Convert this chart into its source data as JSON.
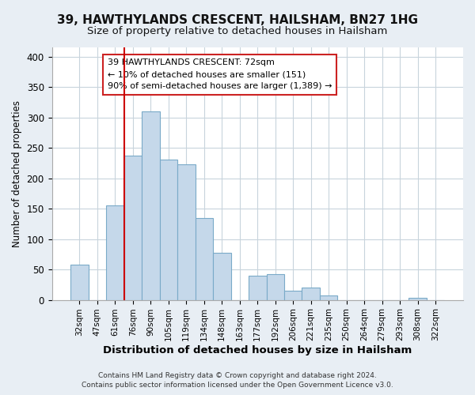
{
  "title": "39, HAWTHYLANDS CRESCENT, HAILSHAM, BN27 1HG",
  "subtitle": "Size of property relative to detached houses in Hailsham",
  "xlabel": "Distribution of detached houses by size in Hailsham",
  "ylabel": "Number of detached properties",
  "bar_color": "#c5d8ea",
  "bar_edge_color": "#7aaac8",
  "categories": [
    "32sqm",
    "47sqm",
    "61sqm",
    "76sqm",
    "90sqm",
    "105sqm",
    "119sqm",
    "134sqm",
    "148sqm",
    "163sqm",
    "177sqm",
    "192sqm",
    "206sqm",
    "221sqm",
    "235sqm",
    "250sqm",
    "264sqm",
    "279sqm",
    "293sqm",
    "308sqm",
    "322sqm"
  ],
  "values": [
    58,
    0,
    155,
    237,
    310,
    230,
    223,
    135,
    78,
    0,
    40,
    42,
    15,
    20,
    7,
    0,
    0,
    0,
    0,
    3,
    0
  ],
  "ylim": [
    0,
    415
  ],
  "yticks": [
    0,
    50,
    100,
    150,
    200,
    250,
    300,
    350,
    400
  ],
  "vline_index": 3,
  "vline_color": "#cc0000",
  "annotation_title": "39 HAWTHYLANDS CRESCENT: 72sqm",
  "annotation_line1": "← 10% of detached houses are smaller (151)",
  "annotation_line2": "90% of semi-detached houses are larger (1,389) →",
  "footer1": "Contains HM Land Registry data © Crown copyright and database right 2024.",
  "footer2": "Contains public sector information licensed under the Open Government Licence v3.0.",
  "bg_color": "#e8eef4",
  "plot_bg_color": "#ffffff",
  "grid_color": "#c8d4dc"
}
